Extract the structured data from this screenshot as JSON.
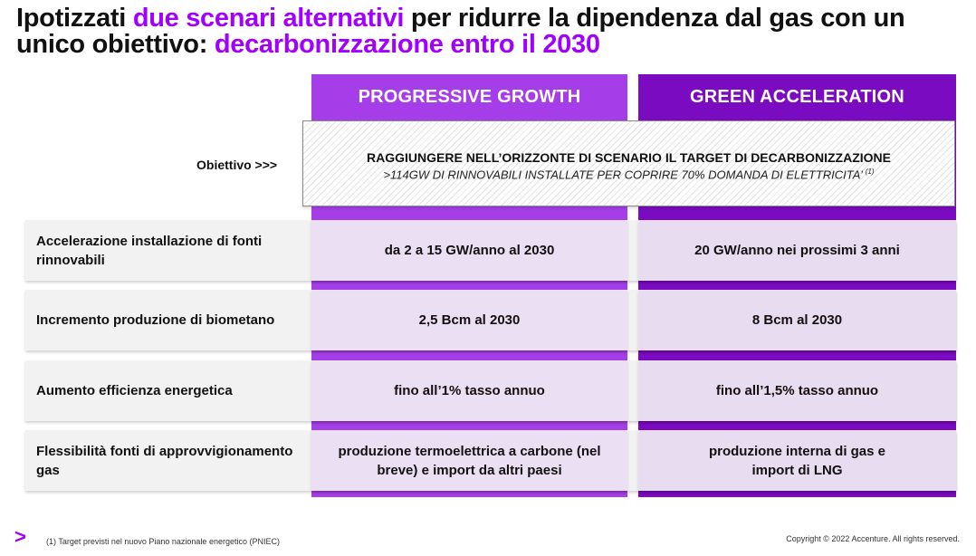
{
  "title": {
    "part1": "Ipotizzati ",
    "highlight1": "due scenari alternativi",
    "part2": " per ridurre la dipendenza dal gas con un unico obiettivo: ",
    "highlight2": "decarbonizzazione entro il 2030"
  },
  "colors": {
    "accent": "#a100ff",
    "progressive_growth": "#a53ee8",
    "green_acceleration": "#7a0bc0"
  },
  "columns": {
    "progressive_growth": "PROGRESSIVE GROWTH",
    "green_acceleration": "GREEN ACCELERATION"
  },
  "objective": {
    "label": "Obiettivo >>>",
    "line1": "RAGGIUNGERE NELL’ORIZZONTE DI SCENARIO IL TARGET DI DECARBONIZZAZIONE",
    "line2": ">114GW DI RINNOVABILI INSTALLATE PER COPRIRE 70% DOMANDA DI ELETTRICITA’",
    "note_ref": "(1)"
  },
  "rows": [
    {
      "label": "Accelerazione installazione di fonti rinnovabili",
      "progressive_growth": "da 2 a 15 GW/anno al 2030",
      "green_acceleration": "20 GW/anno nei prossimi 3 anni"
    },
    {
      "label": "Incremento produzione di biometano",
      "progressive_growth": "2,5 Bcm al 2030",
      "green_acceleration": "8 Bcm al 2030"
    },
    {
      "label": "Aumento efficienza energetica",
      "progressive_growth": "fino all’1% tasso annuo",
      "green_acceleration": "fino all’1,5% tasso annuo"
    },
    {
      "label": "Flessibilità fonti di approvvigionamento gas",
      "progressive_growth": "produzione termoelettrica a carbone (nel breve) e import da altri paesi",
      "green_acceleration": "produzione interna di gas e import di LNG"
    }
  ],
  "footer": {
    "logo": ">",
    "footnote": "(1) Target previsti nel nuovo Piano nazionale energetico (PNIEC)",
    "copyright": "Copyright © 2022 Accenture. All rights reserved."
  }
}
